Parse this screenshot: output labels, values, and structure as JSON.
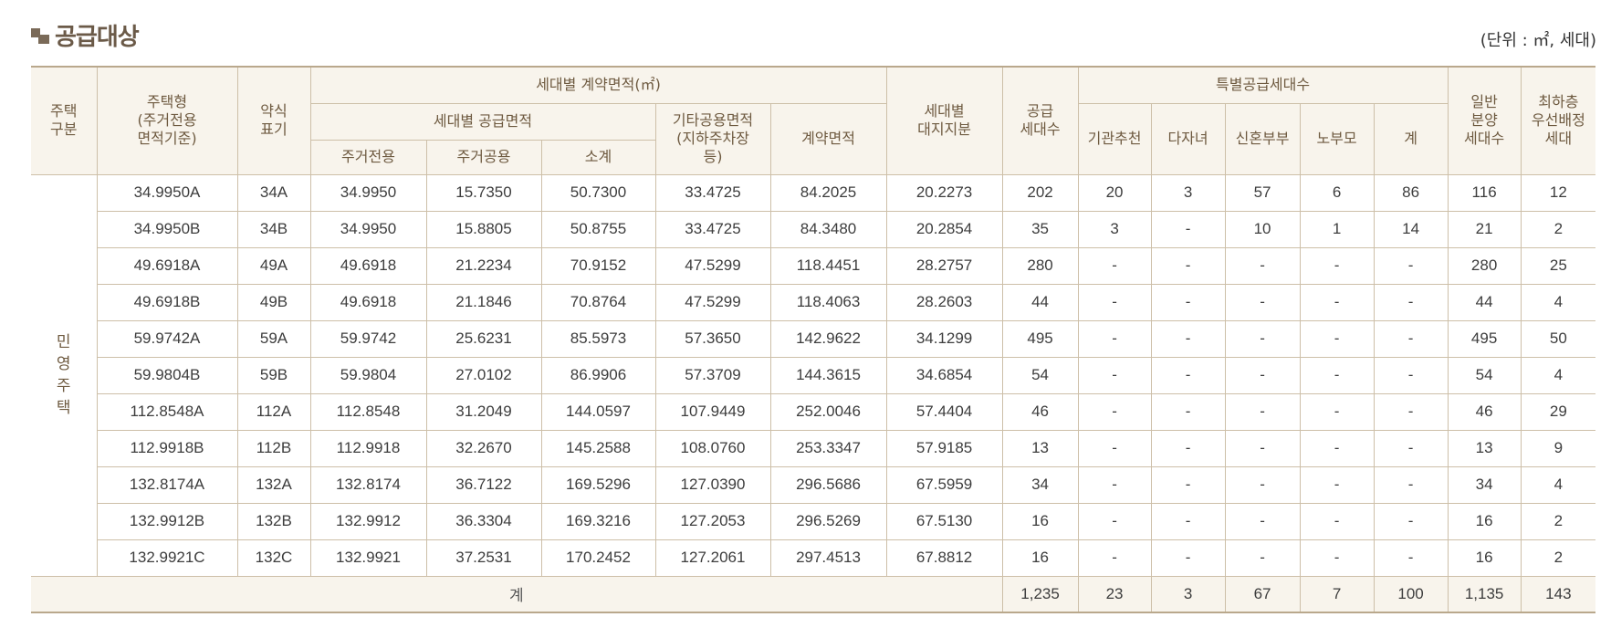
{
  "title": "공급대상",
  "unit": "(단위 : ㎡, 세대)",
  "header": {
    "house_type": "주택\n구분",
    "housing_type": "주택형\n(주거전용\n면적기준)",
    "abbr": "약식\n표기",
    "contract_area_group": "세대별 계약면적(㎡)",
    "supply_area_group": "세대별 공급면적",
    "exclusive": "주거전용",
    "common": "주거공용",
    "subtotal": "소계",
    "other_common": "기타공용면적\n(지하주차장\n등)",
    "contract_area": "계약면적",
    "land_share": "세대별\n대지지분",
    "supply_units": "공급\n세대수",
    "special_group": "특별공급세대수",
    "institution": "기관추천",
    "multi_child": "다자녀",
    "newlywed": "신혼부부",
    "elderly": "노부모",
    "special_total": "계",
    "general": "일반\n분양\n세대수",
    "lowest_floor": "최하층\n우선배정\n세대"
  },
  "group_label": "민영주택",
  "rows": [
    [
      "34.9950A",
      "34A",
      "34.9950",
      "15.7350",
      "50.7300",
      "33.4725",
      "84.2025",
      "20.2273",
      "202",
      "20",
      "3",
      "57",
      "6",
      "86",
      "116",
      "12"
    ],
    [
      "34.9950B",
      "34B",
      "34.9950",
      "15.8805",
      "50.8755",
      "33.4725",
      "84.3480",
      "20.2854",
      "35",
      "3",
      "-",
      "10",
      "1",
      "14",
      "21",
      "2"
    ],
    [
      "49.6918A",
      "49A",
      "49.6918",
      "21.2234",
      "70.9152",
      "47.5299",
      "118.4451",
      "28.2757",
      "280",
      "-",
      "-",
      "-",
      "-",
      "-",
      "280",
      "25"
    ],
    [
      "49.6918B",
      "49B",
      "49.6918",
      "21.1846",
      "70.8764",
      "47.5299",
      "118.4063",
      "28.2603",
      "44",
      "-",
      "-",
      "-",
      "-",
      "-",
      "44",
      "4"
    ],
    [
      "59.9742A",
      "59A",
      "59.9742",
      "25.6231",
      "85.5973",
      "57.3650",
      "142.9622",
      "34.1299",
      "495",
      "-",
      "-",
      "-",
      "-",
      "-",
      "495",
      "50"
    ],
    [
      "59.9804B",
      "59B",
      "59.9804",
      "27.0102",
      "86.9906",
      "57.3709",
      "144.3615",
      "34.6854",
      "54",
      "-",
      "-",
      "-",
      "-",
      "-",
      "54",
      "4"
    ],
    [
      "112.8548A",
      "112A",
      "112.8548",
      "31.2049",
      "144.0597",
      "107.9449",
      "252.0046",
      "57.4404",
      "46",
      "-",
      "-",
      "-",
      "-",
      "-",
      "46",
      "29"
    ],
    [
      "112.9918B",
      "112B",
      "112.9918",
      "32.2670",
      "145.2588",
      "108.0760",
      "253.3347",
      "57.9185",
      "13",
      "-",
      "-",
      "-",
      "-",
      "-",
      "13",
      "9"
    ],
    [
      "132.8174A",
      "132A",
      "132.8174",
      "36.7122",
      "169.5296",
      "127.0390",
      "296.5686",
      "67.5959",
      "34",
      "-",
      "-",
      "-",
      "-",
      "-",
      "34",
      "4"
    ],
    [
      "132.9912B",
      "132B",
      "132.9912",
      "36.3304",
      "169.3216",
      "127.2053",
      "296.5269",
      "67.5130",
      "16",
      "-",
      "-",
      "-",
      "-",
      "-",
      "16",
      "2"
    ],
    [
      "132.9921C",
      "132C",
      "132.9921",
      "37.2531",
      "170.2452",
      "127.2061",
      "297.4513",
      "67.8812",
      "16",
      "-",
      "-",
      "-",
      "-",
      "-",
      "16",
      "2"
    ]
  ],
  "total": {
    "label": "계",
    "values": [
      "1,235",
      "23",
      "3",
      "67",
      "7",
      "100",
      "1,135",
      "143"
    ]
  }
}
